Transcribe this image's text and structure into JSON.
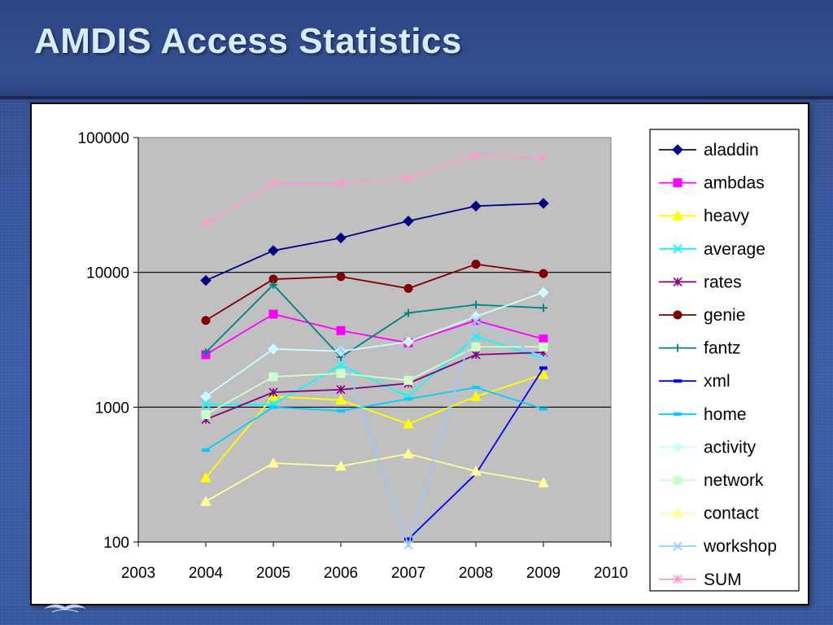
{
  "slide": {
    "title": "AMDIS Access Statistics"
  },
  "chart_data": {
    "type": "line",
    "title": "",
    "xlabel": "",
    "ylabel": "",
    "y_scale": "log",
    "xlim": [
      2003,
      2010
    ],
    "ylim": [
      100,
      100000
    ],
    "x_ticks": [
      "2003",
      "2004",
      "2005",
      "2006",
      "2007",
      "2008",
      "2009",
      "2010"
    ],
    "y_ticks": [
      {
        "value": 100,
        "label": "100"
      },
      {
        "value": 1000,
        "label": "1000"
      },
      {
        "value": 10000,
        "label": "10000"
      },
      {
        "value": 100000,
        "label": "100000"
      }
    ],
    "gridlines": "major horizontal",
    "plot_background": "#c0c0c0",
    "legend_position": "right",
    "series": [
      {
        "name": "aladdin",
        "color": "#000080",
        "marker": "diamond",
        "x": [
          2004,
          2005,
          2006,
          2007,
          2008,
          2009
        ],
        "values": [
          8700,
          14500,
          18000,
          24000,
          31000,
          32500
        ]
      },
      {
        "name": "ambdas",
        "color": "#ff00ff",
        "marker": "square",
        "x": [
          2004,
          2005,
          2006,
          2007,
          2008,
          2009
        ],
        "values": [
          2450,
          4900,
          3700,
          3000,
          4400,
          3200
        ]
      },
      {
        "name": "heavy",
        "color": "#ffff00",
        "marker": "triangle",
        "x": [
          2004,
          2005,
          2006,
          2007,
          2008,
          2009
        ],
        "values": [
          300,
          1200,
          1130,
          750,
          1200,
          1750
        ]
      },
      {
        "name": "average",
        "color": "#00ffff",
        "marker": "x",
        "x": [
          2004,
          2005,
          2006,
          2007,
          2008,
          2009
        ],
        "values": [
          1050,
          1050,
          2050,
          1200,
          3350,
          2300
        ]
      },
      {
        "name": "rates",
        "color": "#800080",
        "marker": "star",
        "x": [
          2004,
          2005,
          2006,
          2007,
          2008,
          2009
        ],
        "values": [
          810,
          1290,
          1350,
          1500,
          2450,
          2550
        ]
      },
      {
        "name": "genie",
        "color": "#800000",
        "marker": "circle",
        "x": [
          2004,
          2005,
          2006,
          2007,
          2008,
          2009
        ],
        "values": [
          4400,
          8900,
          9300,
          7600,
          11500,
          9800
        ]
      },
      {
        "name": "fantz",
        "color": "#008080",
        "marker": "plus",
        "x": [
          2004,
          2005,
          2006,
          2007,
          2008,
          2009
        ],
        "values": [
          2550,
          8100,
          2350,
          5000,
          5750,
          5450
        ]
      },
      {
        "name": "xml",
        "color": "#0000ff",
        "marker": "dash",
        "x": [
          2007,
          2008,
          2009
        ],
        "values": [
          105,
          320,
          1950
        ]
      },
      {
        "name": "home",
        "color": "#00ccff",
        "marker": "dash",
        "x": [
          2004,
          2005,
          2006,
          2007,
          2008,
          2009
        ],
        "values": [
          480,
          1000,
          940,
          1150,
          1400,
          970
        ]
      },
      {
        "name": "activity",
        "color": "#ccffff",
        "marker": "diamond",
        "x": [
          2004,
          2005,
          2006,
          2007,
          2008,
          2009
        ],
        "values": [
          1200,
          2700,
          2600,
          3050,
          4700,
          7100
        ]
      },
      {
        "name": "network",
        "color": "#ccffcc",
        "marker": "square",
        "x": [
          2004,
          2005,
          2006,
          2007,
          2008,
          2009
        ],
        "values": [
          880,
          1680,
          1780,
          1580,
          2800,
          2800
        ]
      },
      {
        "name": "contact",
        "color": "#ffff99",
        "marker": "triangle",
        "x": [
          2004,
          2005,
          2006,
          2007,
          2008,
          2009
        ],
        "values": [
          200,
          385,
          365,
          450,
          335,
          275
        ]
      },
      {
        "name": "workshop",
        "color": "#99ccff",
        "marker": "x",
        "x": [
          2006,
          2007,
          2008,
          2009
        ],
        "values": [
          2700,
          95,
          4400,
          2300
        ]
      },
      {
        "name": "SUM",
        "color": "#ff99cc",
        "marker": "star",
        "x": [
          2004,
          2005,
          2006,
          2007,
          2008,
          2009
        ],
        "values": [
          23000,
          46000,
          46000,
          50000,
          74000,
          71000
        ]
      }
    ]
  }
}
